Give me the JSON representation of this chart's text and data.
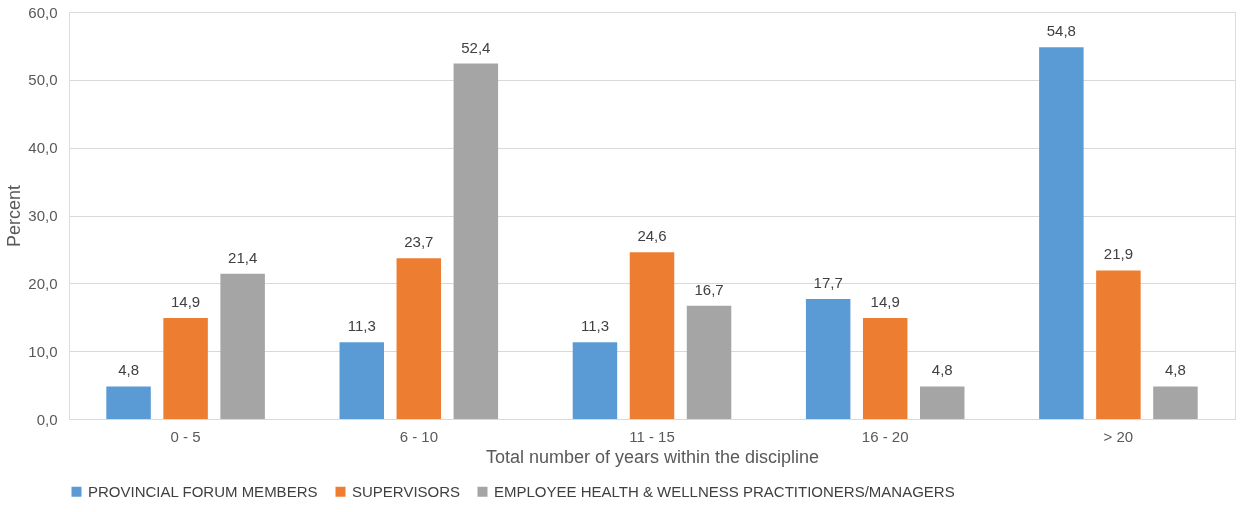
{
  "chart_data": {
    "type": "bar",
    "xlabel": "Total number of years within the discipline",
    "ylabel": "Percent",
    "categories": [
      "0 - 5",
      "6 - 10",
      "11 - 15",
      "16 - 20",
      "> 20"
    ],
    "series": [
      {
        "name": "PROVINCIAL FORUM MEMBERS",
        "color": "#5b9bd5",
        "values": [
          4.8,
          11.3,
          11.3,
          17.7,
          54.8
        ],
        "value_labels": [
          "4,8",
          "11,3",
          "11,3",
          "17,7",
          "54,8"
        ]
      },
      {
        "name": "SUPERVISORS",
        "color": "#ed7d31",
        "values": [
          14.9,
          23.7,
          24.6,
          14.9,
          21.9
        ],
        "value_labels": [
          "14,9",
          "23,7",
          "24,6",
          "14,9",
          "21,9"
        ]
      },
      {
        "name": "EMPLOYEE HEALTH & WELLNESS PRACTITIONERS/MANAGERS",
        "color": "#a5a5a5",
        "values": [
          21.4,
          52.4,
          16.7,
          4.8,
          4.8
        ],
        "value_labels": [
          "21,4",
          "52,4",
          "16,7",
          "4,8",
          "4,8"
        ]
      }
    ],
    "ylim": [
      0,
      60
    ],
    "yticks": [
      {
        "value": 0,
        "label": "0,0"
      },
      {
        "value": 10,
        "label": "10,0"
      },
      {
        "value": 20,
        "label": "20,0"
      },
      {
        "value": 30,
        "label": "30,0"
      },
      {
        "value": 40,
        "label": "40,0"
      },
      {
        "value": 50,
        "label": "50,0"
      },
      {
        "value": 60,
        "label": "60,0"
      }
    ],
    "grid": "y",
    "legend": "bottom"
  }
}
